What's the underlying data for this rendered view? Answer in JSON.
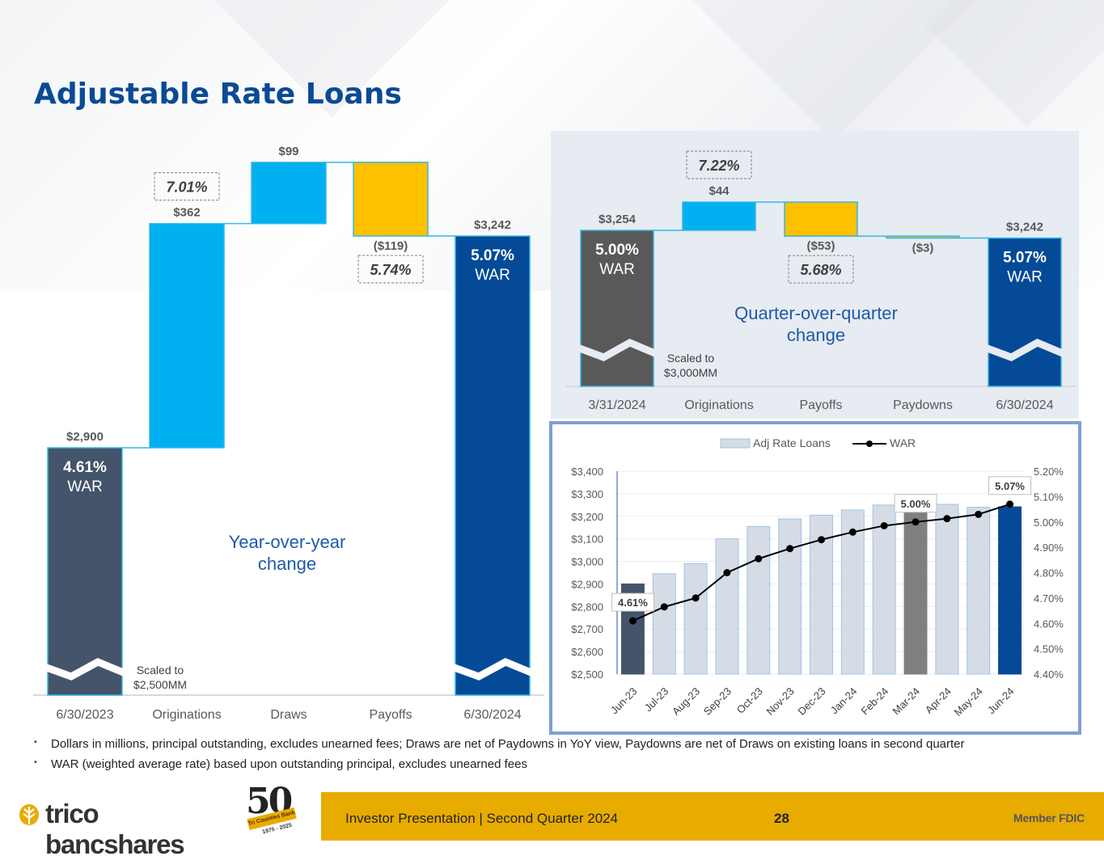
{
  "page": {
    "title": "Adjustable Rate Loans",
    "footnotes": [
      "Dollars in millions, principal outstanding, excludes unearned fees; Draws are net of Paydowns in YoY view, Paydowns are net of Draws on existing loans in second quarter",
      "WAR (weighted average rate) based upon outstanding principal, excludes unearned fees"
    ],
    "footer": {
      "presentation": "Investor Presentation  |  Second Quarter 2024",
      "page_number": "28",
      "member": "Member FDIC",
      "logo": "trico bancshares",
      "badge_number": "50",
      "badge_ribbon": "Tri Counties Bank",
      "badge_years": "1975 - 2025"
    }
  },
  "chart_data": [
    {
      "type": "bar",
      "subtype": "waterfall",
      "annotation": "Year-over-year change",
      "scale_note": "Scaled to $2,500MM",
      "axis_break": true,
      "ylim": [
        2500,
        3400
      ],
      "categories": [
        "6/30/2023",
        "Originations",
        "Draws",
        "Payoffs",
        "6/30/2024"
      ],
      "values": [
        2900,
        362,
        99,
        -119,
        3242
      ],
      "value_labels": [
        "$2,900",
        "$362",
        "$99",
        "($119)",
        "$3,242"
      ],
      "rate_labels": [
        "4.61%",
        "7.01%",
        "",
        "5.74%",
        "5.07%"
      ],
      "war_text": "WAR",
      "colors": {
        "start": "#44546a",
        "increase": "#00b0f0",
        "decrease": "#ffc000",
        "end": "#054a96"
      }
    },
    {
      "type": "bar",
      "subtype": "waterfall",
      "annotation": "Quarter-over-quarter change",
      "scale_note": "Scaled to $3,000MM",
      "axis_break": true,
      "ylim": [
        3000,
        3310
      ],
      "categories": [
        "3/31/2024",
        "Originations",
        "Payoffs",
        "Paydowns",
        "6/30/2024"
      ],
      "values": [
        3254,
        44,
        -53,
        -3,
        3242
      ],
      "value_labels": [
        "$3,254",
        "$44",
        "($53)",
        "($3)",
        "$3,242"
      ],
      "rate_labels": [
        "5.00%",
        "7.22%",
        "5.68%",
        "",
        "5.07%"
      ],
      "war_text": "WAR",
      "colors": {
        "start": "#595959",
        "increase": "#00b0f0",
        "decrease": "#ffc000",
        "paydown": "#00b0f0",
        "end": "#054a96"
      }
    },
    {
      "type": "bar",
      "subtype": "bar-line combo",
      "legend_position": "top",
      "categories": [
        "Jun-23",
        "Jul-23",
        "Aug-23",
        "Sep-23",
        "Oct-23",
        "Nov-23",
        "Dec-23",
        "Jan-24",
        "Feb-24",
        "Mar-24",
        "Apr-24",
        "May-24",
        "Jun-24"
      ],
      "series": [
        {
          "name": "Adj Rate Loans",
          "axis": "left",
          "values": [
            2900,
            2945,
            2990,
            3100,
            3155,
            3188,
            3205,
            3228,
            3250,
            3254,
            3253,
            3240,
            3242
          ]
        },
        {
          "name": "WAR",
          "axis": "right",
          "values": [
            4.61,
            4.665,
            4.7,
            4.8,
            4.855,
            4.895,
            4.93,
            4.96,
            4.985,
            5.0,
            5.013,
            5.03,
            5.07
          ]
        }
      ],
      "ylim_left": [
        2500,
        3400
      ],
      "yticks_left": [
        "$2,500",
        "$2,600",
        "$2,700",
        "$2,800",
        "$2,900",
        "$3,000",
        "$3,100",
        "$3,200",
        "$3,300",
        "$3,400"
      ],
      "ylim_right": [
        4.4,
        5.2
      ],
      "yticks_right": [
        "4.40%",
        "4.50%",
        "4.60%",
        "4.70%",
        "4.80%",
        "4.90%",
        "5.00%",
        "5.10%",
        "5.20%"
      ],
      "data_labels": [
        {
          "index": 0,
          "text": "4.61%"
        },
        {
          "index": 9,
          "text": "5.00%"
        },
        {
          "index": 12,
          "text": "5.07%"
        }
      ],
      "colors": {
        "bar": "#d6dce5",
        "bar_edge": "#9dc3e6",
        "first": "#44546a",
        "highlight": "#7f7f7f",
        "last": "#054a96",
        "line": "#000000"
      }
    }
  ]
}
